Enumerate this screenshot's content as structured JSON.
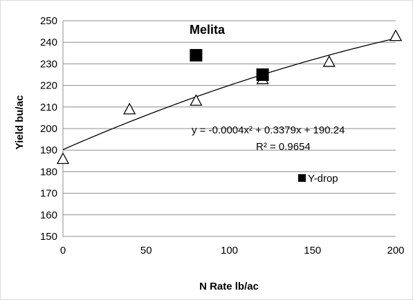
{
  "chart_data": {
    "type": "scatter",
    "title": "Melita",
    "xlabel": "N Rate lb/ac",
    "ylabel": "Yield bu/ac",
    "xlim": [
      0,
      200
    ],
    "ylim": [
      150,
      250
    ],
    "x_ticks": [
      0,
      50,
      100,
      150,
      200
    ],
    "y_ticks": [
      150,
      160,
      170,
      180,
      190,
      200,
      210,
      220,
      230,
      240,
      250
    ],
    "grid": "horizontal",
    "series": [
      {
        "marker": "open-triangle",
        "x": [
          0,
          40,
          80,
          120,
          160,
          200
        ],
        "y": [
          186,
          209,
          213,
          223,
          231,
          243
        ]
      },
      {
        "name": "Y-drop",
        "marker": "filled-square",
        "x": [
          80,
          120
        ],
        "y": [
          234,
          225
        ]
      }
    ],
    "trendline": {
      "type": "polynomial",
      "coefficients": {
        "a": -0.0004,
        "b": 0.3379,
        "c": 190.24
      },
      "equation": "y = -0.0004x² + 0.3379x + 190.24",
      "r_squared": "R² = 0.9654"
    },
    "legend_position": "lower-right inside plot"
  }
}
